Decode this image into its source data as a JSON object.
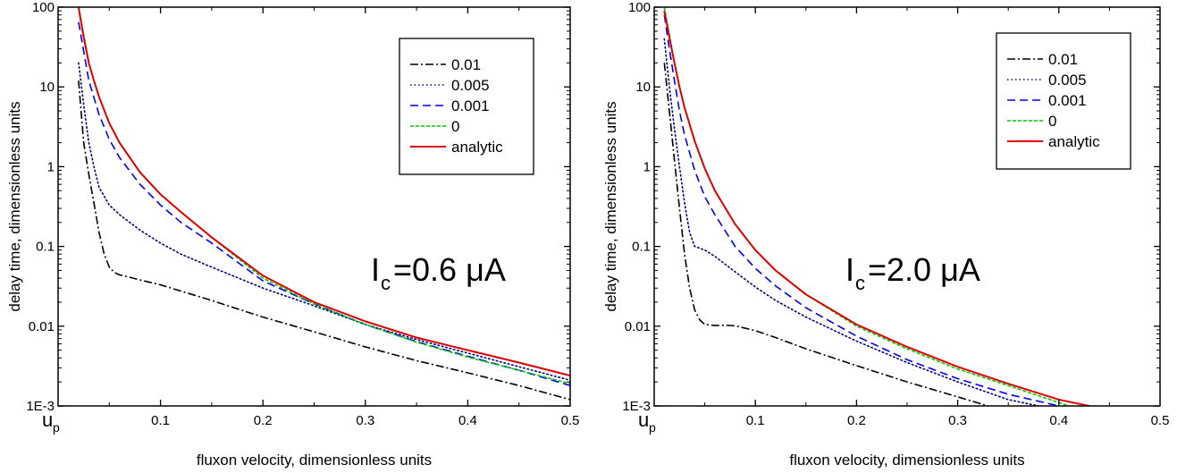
{
  "chart_data": [
    {
      "type": "line",
      "xlabel": "fluxon velocity, dimensionless units",
      "ylabel": "delay time, dimensionless units",
      "x_scale": "linear",
      "y_scale": "log",
      "xlim": [
        0,
        0.5
      ],
      "ylim": [
        0.001,
        100
      ],
      "x_ticks": [
        0.1,
        0.2,
        0.3,
        0.4,
        0.5
      ],
      "x_tick_labels": [
        "0.1",
        "0.2",
        "0.3",
        "0.4",
        "0.5"
      ],
      "x_origin_label": "u",
      "x_origin_sub": "p",
      "y_ticks": [
        0.001,
        0.01,
        0.1,
        1,
        10,
        100
      ],
      "y_tick_labels": [
        "1E-3",
        "0.01",
        "0.1",
        "1",
        "10",
        "100"
      ],
      "annotation": {
        "main": "I",
        "sub": "c",
        "rest": "=0.6 μA"
      },
      "legend_position": "top-right",
      "series": [
        {
          "name": "0.01",
          "color": "#000000",
          "dash": "dashdot",
          "x": [
            0.02,
            0.025,
            0.03,
            0.035,
            0.04,
            0.045,
            0.05,
            0.055,
            0.06,
            0.07,
            0.08,
            0.1,
            0.15,
            0.2,
            0.25,
            0.3,
            0.35,
            0.4,
            0.45,
            0.5
          ],
          "y": [
            12,
            2.0,
            0.8,
            0.35,
            0.15,
            0.08,
            0.055,
            0.047,
            0.044,
            0.041,
            0.038,
            0.033,
            0.021,
            0.013,
            0.0085,
            0.0055,
            0.0037,
            0.0026,
            0.0018,
            0.0012
          ]
        },
        {
          "name": "0.005",
          "color": "#00008b",
          "dash": "dotted",
          "x": [
            0.02,
            0.025,
            0.03,
            0.035,
            0.04,
            0.05,
            0.06,
            0.07,
            0.08,
            0.1,
            0.12,
            0.15,
            0.2,
            0.25,
            0.3,
            0.35,
            0.4,
            0.45,
            0.5
          ],
          "y": [
            20,
            6.0,
            2.0,
            1.0,
            0.55,
            0.33,
            0.25,
            0.2,
            0.16,
            0.11,
            0.08,
            0.055,
            0.03,
            0.018,
            0.0105,
            0.0068,
            0.0046,
            0.0031,
            0.0021
          ]
        },
        {
          "name": "0.001",
          "color": "#0000ff",
          "dash": "dashed",
          "x": [
            0.02,
            0.025,
            0.03,
            0.04,
            0.05,
            0.06,
            0.08,
            0.1,
            0.12,
            0.15,
            0.2,
            0.25,
            0.3,
            0.35,
            0.4,
            0.45,
            0.5
          ],
          "y": [
            65,
            28,
            12,
            4.5,
            2.2,
            1.3,
            0.6,
            0.33,
            0.2,
            0.11,
            0.037,
            0.019,
            0.0105,
            0.0064,
            0.0042,
            0.0028,
            0.0018
          ]
        },
        {
          "name": "0",
          "color": "#00cc00",
          "dash": "dashed-fine",
          "x": [
            0.02,
            0.022,
            0.025,
            0.03,
            0.035,
            0.04,
            0.05,
            0.06,
            0.08,
            0.1,
            0.12,
            0.15,
            0.2,
            0.25,
            0.3,
            0.35,
            0.4,
            0.45,
            0.5
          ],
          "y": [
            100,
            75,
            45,
            20,
            12,
            7.5,
            3.5,
            2.0,
            0.85,
            0.45,
            0.27,
            0.13,
            0.04,
            0.019,
            0.0105,
            0.0063,
            0.0041,
            0.0028,
            0.0019
          ]
        },
        {
          "name": "analytic",
          "color": "#e00000",
          "dash": "solid",
          "x": [
            0.02,
            0.022,
            0.025,
            0.03,
            0.035,
            0.04,
            0.05,
            0.06,
            0.08,
            0.1,
            0.12,
            0.15,
            0.2,
            0.25,
            0.3,
            0.35,
            0.4,
            0.45,
            0.5
          ],
          "y": [
            100,
            70,
            42,
            20,
            12,
            7.5,
            3.5,
            2.0,
            0.85,
            0.45,
            0.27,
            0.13,
            0.043,
            0.02,
            0.0115,
            0.0072,
            0.005,
            0.0035,
            0.0024
          ]
        }
      ]
    },
    {
      "type": "line",
      "xlabel": "fluxon velocity, dimensionless units",
      "ylabel": "delay time, dimensionless units",
      "x_scale": "linear",
      "y_scale": "log",
      "xlim": [
        0,
        0.5
      ],
      "ylim": [
        0.001,
        100
      ],
      "x_ticks": [
        0.1,
        0.2,
        0.3,
        0.4,
        0.5
      ],
      "x_tick_labels": [
        "0.1",
        "0.2",
        "0.3",
        "0.4",
        "0.5"
      ],
      "x_origin_label": "u",
      "x_origin_sub": "p",
      "y_ticks": [
        0.001,
        0.01,
        0.1,
        1,
        10,
        100
      ],
      "y_tick_labels": [
        "1E-3",
        "0.01",
        "0.1",
        "1",
        "10",
        "100"
      ],
      "annotation": {
        "main": "I",
        "sub": "c",
        "rest": "=2.0 μA"
      },
      "legend_position": "top-right",
      "series": [
        {
          "name": "0.01",
          "color": "#000000",
          "dash": "dashdot",
          "x": [
            0.01,
            0.015,
            0.02,
            0.025,
            0.03,
            0.035,
            0.04,
            0.045,
            0.05,
            0.06,
            0.07,
            0.08,
            0.1,
            0.12,
            0.15,
            0.2,
            0.25,
            0.3,
            0.33
          ],
          "y": [
            20,
            5.0,
            1.2,
            0.3,
            0.08,
            0.03,
            0.016,
            0.012,
            0.0105,
            0.0102,
            0.0103,
            0.0101,
            0.0088,
            0.0072,
            0.0052,
            0.0032,
            0.002,
            0.0013,
            0.001
          ]
        },
        {
          "name": "0.005",
          "color": "#00008b",
          "dash": "dotted",
          "x": [
            0.01,
            0.015,
            0.02,
            0.025,
            0.03,
            0.035,
            0.04,
            0.05,
            0.06,
            0.08,
            0.1,
            0.12,
            0.15,
            0.2,
            0.25,
            0.3,
            0.35,
            0.38
          ],
          "y": [
            40,
            10,
            3.0,
            1.0,
            0.35,
            0.15,
            0.1,
            0.09,
            0.075,
            0.048,
            0.031,
            0.021,
            0.013,
            0.0065,
            0.0035,
            0.002,
            0.0012,
            0.001
          ]
        },
        {
          "name": "0.001",
          "color": "#0000ff",
          "dash": "dashed",
          "x": [
            0.01,
            0.015,
            0.02,
            0.025,
            0.03,
            0.04,
            0.05,
            0.06,
            0.08,
            0.1,
            0.12,
            0.15,
            0.2,
            0.25,
            0.3,
            0.35,
            0.4
          ],
          "y": [
            80,
            30,
            12,
            5.0,
            2.5,
            0.9,
            0.42,
            0.25,
            0.1,
            0.053,
            0.032,
            0.017,
            0.0075,
            0.0038,
            0.0022,
            0.0014,
            0.001
          ]
        },
        {
          "name": "0",
          "color": "#00cc00",
          "dash": "dashed-fine",
          "x": [
            0.01,
            0.015,
            0.02,
            0.025,
            0.03,
            0.04,
            0.05,
            0.06,
            0.08,
            0.1,
            0.12,
            0.15,
            0.2,
            0.25,
            0.3,
            0.35,
            0.4,
            0.41
          ],
          "y": [
            100,
            45,
            20,
            10,
            5.5,
            2.1,
            0.95,
            0.5,
            0.19,
            0.09,
            0.05,
            0.025,
            0.01,
            0.0052,
            0.0029,
            0.0018,
            0.0011,
            0.001
          ]
        },
        {
          "name": "analytic",
          "color": "#e00000",
          "dash": "solid",
          "x": [
            0.01,
            0.015,
            0.02,
            0.025,
            0.03,
            0.04,
            0.05,
            0.06,
            0.08,
            0.1,
            0.12,
            0.15,
            0.2,
            0.25,
            0.3,
            0.35,
            0.4,
            0.43
          ],
          "y": [
            90,
            42,
            20,
            10,
            5.5,
            2.1,
            0.95,
            0.5,
            0.19,
            0.09,
            0.05,
            0.025,
            0.0105,
            0.0055,
            0.0031,
            0.0019,
            0.0012,
            0.001
          ]
        }
      ]
    }
  ]
}
